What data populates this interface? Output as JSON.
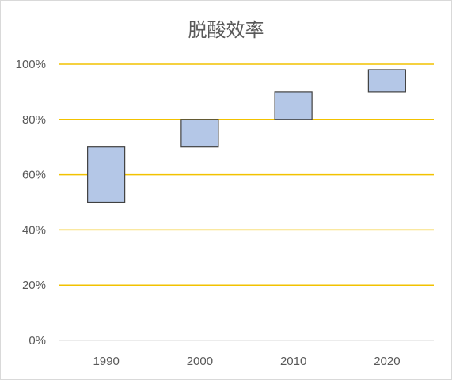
{
  "chart_data": {
    "type": "floating-bar",
    "title": "脱酸效率",
    "categories": [
      "1990",
      "2000",
      "2010",
      "2020"
    ],
    "series": [
      {
        "low": [
          0.5,
          0.7,
          0.8,
          0.9
        ],
        "high": [
          0.7,
          0.8,
          0.9,
          0.98
        ]
      }
    ],
    "ylim": [
      0,
      1.0
    ],
    "yticks": [
      0,
      0.2,
      0.4,
      0.6,
      0.8,
      1.0
    ],
    "ytick_labels": [
      "0%",
      "20%",
      "40%",
      "60%",
      "80%",
      "100%"
    ],
    "grid": true,
    "colors": {
      "bar_fill": "#b4c7e7",
      "bar_stroke": "#404040",
      "grid": "#f2c200",
      "axis": "#d9d9d9",
      "text": "#595959"
    }
  }
}
